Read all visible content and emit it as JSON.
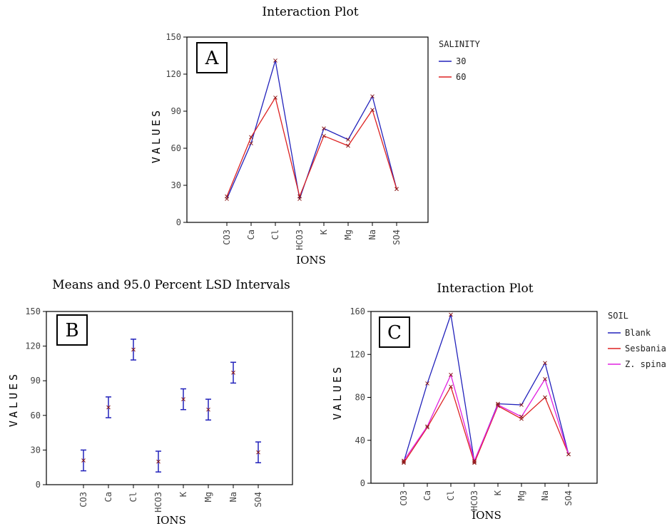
{
  "chart_data": [
    {
      "type": "line",
      "panel_label": "A",
      "title": "Interaction Plot",
      "xlabel": "IONS",
      "ylabel": "VALUES",
      "categories": [
        "CO3",
        "Ca",
        "Cl",
        "HCO3",
        "K",
        "Mg",
        "Na",
        "SO4"
      ],
      "ylim": [
        0,
        150
      ],
      "yticks": [
        0,
        30,
        60,
        90,
        120,
        150
      ],
      "legend": {
        "title": "SALINITY",
        "position": "right"
      },
      "series": [
        {
          "name": "30",
          "color": "#2222bb",
          "values": [
            19,
            64,
            131,
            19,
            76,
            67,
            102,
            27
          ]
        },
        {
          "name": "60",
          "color": "#dd2222",
          "values": [
            21,
            69,
            101,
            21,
            70,
            62,
            91,
            27
          ]
        }
      ]
    },
    {
      "type": "errorbar",
      "panel_label": "B",
      "title": "Means and 95.0 Percent LSD Intervals",
      "xlabel": "IONS",
      "ylabel": "VALUES",
      "categories": [
        "CO3",
        "Ca",
        "Cl",
        "HCO3",
        "K",
        "Mg",
        "Na",
        "SO4"
      ],
      "ylim": [
        0,
        150
      ],
      "yticks": [
        0,
        30,
        60,
        90,
        120,
        150
      ],
      "color": "#2222bb",
      "means": [
        21,
        67,
        117,
        20,
        74,
        65,
        97,
        28
      ],
      "lower": [
        12,
        58,
        108,
        11,
        65,
        56,
        88,
        19
      ],
      "upper": [
        30,
        76,
        126,
        29,
        83,
        74,
        106,
        37
      ]
    },
    {
      "type": "line",
      "panel_label": "C",
      "title": "Interaction Plot",
      "xlabel": "IONS",
      "ylabel": "VALUES",
      "categories": [
        "CO3",
        "Ca",
        "Cl",
        "HCO3",
        "K",
        "Mg",
        "Na",
        "SO4"
      ],
      "ylim": [
        0,
        160
      ],
      "yticks": [
        0,
        40,
        80,
        120,
        160
      ],
      "legend": {
        "title": "SOIL",
        "position": "right"
      },
      "series": [
        {
          "name": "Blank",
          "color": "#2222bb",
          "values": [
            20,
            93,
            157,
            20,
            74,
            73,
            112,
            27
          ]
        },
        {
          "name": "Sesbania",
          "color": "#dd2222",
          "values": [
            19,
            52,
            90,
            19,
            72,
            60,
            80,
            27
          ]
        },
        {
          "name": "Z. spina",
          "color": "#e020e0",
          "values": [
            21,
            53,
            101,
            21,
            73,
            62,
            97,
            27
          ]
        }
      ]
    }
  ]
}
